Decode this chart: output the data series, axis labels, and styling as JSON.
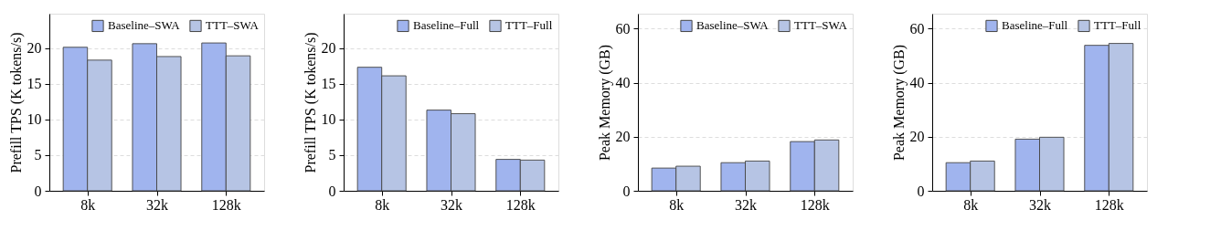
{
  "chart_data": [
    {
      "type": "bar",
      "categories": [
        "8k",
        "32k",
        "128k"
      ],
      "ylabel": "Prefill TPS (K tokens/s)",
      "ylim": [
        0,
        24.8
      ],
      "yticks": [
        0,
        5,
        10,
        15,
        20
      ],
      "grid": "y",
      "legend": "top right",
      "series": [
        {
          "name": "Baseline–SWA",
          "color": "#a0b4ee",
          "values": [
            20.1,
            20.6,
            20.7
          ]
        },
        {
          "name": "TTT–SWA",
          "color": "#b6c4e4",
          "values": [
            18.3,
            18.8,
            18.9
          ]
        }
      ]
    },
    {
      "type": "bar",
      "categories": [
        "8k",
        "32k",
        "128k"
      ],
      "ylabel": "Prefill TPS (K tokens/s)",
      "ylim": [
        0,
        24.8
      ],
      "yticks": [
        0,
        5,
        10,
        15,
        20
      ],
      "grid": "y",
      "legend": "top right",
      "series": [
        {
          "name": "Baseline–Full",
          "color": "#a0b4ee",
          "values": [
            17.3,
            11.3,
            4.4
          ]
        },
        {
          "name": "TTT–Full",
          "color": "#b6c4e4",
          "values": [
            16.1,
            10.8,
            4.3
          ]
        }
      ]
    },
    {
      "type": "bar",
      "categories": [
        "8k",
        "32k",
        "128k"
      ],
      "ylabel": "Peak Memory (GB)",
      "ylim": [
        0,
        65.5
      ],
      "yticks": [
        0,
        20,
        40,
        60
      ],
      "grid": "y",
      "legend": "top right",
      "series": [
        {
          "name": "Baseline–SWA",
          "color": "#a0b4ee",
          "values": [
            8.4,
            10.4,
            18.2
          ]
        },
        {
          "name": "TTT–SWA",
          "color": "#b6c4e4",
          "values": [
            9.1,
            11.0,
            18.8
          ]
        }
      ]
    },
    {
      "type": "bar",
      "categories": [
        "8k",
        "32k",
        "128k"
      ],
      "ylabel": "Peak Memory (GB)",
      "ylim": [
        0,
        65.5
      ],
      "yticks": [
        0,
        20,
        40,
        60
      ],
      "grid": "y",
      "legend": "top right",
      "series": [
        {
          "name": "Baseline–Full",
          "color": "#a0b4ee",
          "values": [
            10.4,
            19.1,
            53.8
          ]
        },
        {
          "name": "TTT–Full",
          "color": "#b6c4e4",
          "values": [
            11.0,
            19.8,
            54.5
          ]
        }
      ]
    }
  ]
}
